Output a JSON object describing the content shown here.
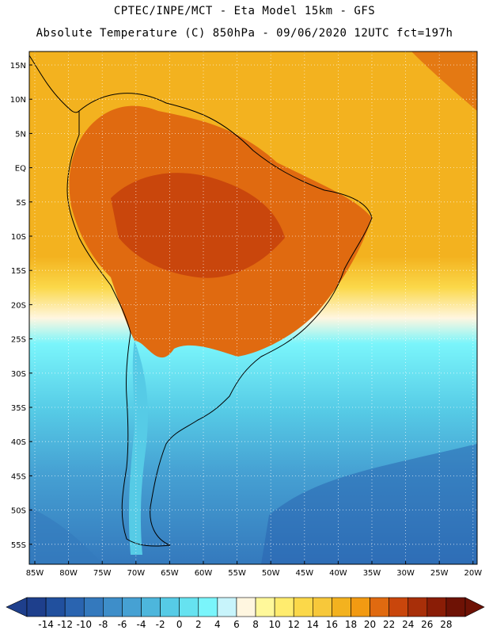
{
  "header": {
    "line1": "CPTEC/INPE/MCT -   Eta Model 15km - GFS",
    "line2": "Absolute Temperature (C) 850hPa - 09/06/2020 12UTC fct=197h"
  },
  "map": {
    "lat_labels": [
      "15N",
      "10N",
      "5N",
      "EQ",
      "5S",
      "10S",
      "15S",
      "20S",
      "25S",
      "30S",
      "35S",
      "40S",
      "45S",
      "50S",
      "55S"
    ],
    "lon_labels": [
      "85W",
      "80W",
      "75W",
      "70W",
      "65W",
      "60W",
      "55W",
      "50W",
      "45W",
      "40W",
      "35W",
      "30W",
      "25W",
      "20W"
    ],
    "field": "temperature at 850hPa",
    "grid": "dotted"
  },
  "colorbar": {
    "labels": [
      "-14",
      "-12",
      "-10",
      "-8",
      "-6",
      "-4",
      "-2",
      "0",
      "2",
      "4",
      "6",
      "8",
      "10",
      "12",
      "14",
      "16",
      "18",
      "20",
      "22",
      "24",
      "26",
      "28"
    ],
    "colors": [
      "#1e3f8c",
      "#21509e",
      "#2a64b0",
      "#3479bd",
      "#3e8ec9",
      "#46a1d3",
      "#4db6dc",
      "#56cbe6",
      "#66e2f0",
      "#7af5fb",
      "#c8f4fb",
      "#fff6e0",
      "#fff89a",
      "#ffec6e",
      "#fbd849",
      "#f7c83a",
      "#f3b21f",
      "#f29a12",
      "#e06a10",
      "#c9460c",
      "#a82f09",
      "#8a1d06",
      "#6e1205"
    ]
  }
}
